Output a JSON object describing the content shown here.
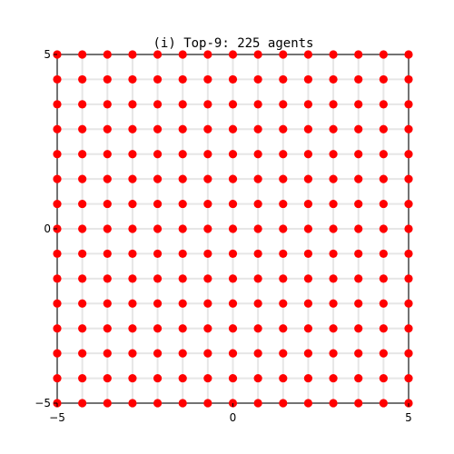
{
  "chart_data": {
    "type": "scatter",
    "title": "(i) Top-9: 225 agents",
    "xlabel": "",
    "ylabel": "",
    "xlim": [
      -5,
      5
    ],
    "ylim": [
      -5,
      5
    ],
    "xticks": [
      -5,
      0,
      5
    ],
    "yticks": [
      -5,
      0,
      5
    ],
    "xtick_labels": [
      "−5",
      "0",
      "5"
    ],
    "ytick_labels": [
      "−5",
      "0",
      "5"
    ],
    "grid": true,
    "edge_weights": "nearest neighbors (4-connected lattice)",
    "grid_resolution": 15,
    "series": [
      {
        "marker": "circle",
        "color": "#ff0000",
        "x_values": [
          -5,
          -4.2857,
          -3.5714,
          -2.8571,
          -2.1429,
          -1.4286,
          -0.7143,
          0,
          0.7143,
          1.4286,
          2.1429,
          2.8571,
          3.5714,
          4.2857,
          5
        ],
        "y_values": [
          -5,
          -4.2857,
          -3.5714,
          -2.8571,
          -2.1429,
          -1.4286,
          -0.7143,
          0,
          0.7143,
          1.4286,
          2.1429,
          2.8571,
          3.5714,
          4.2857,
          5
        ]
      }
    ],
    "colors": {
      "point": "#ff0000",
      "link": "#e6e6e6",
      "axes": "#000000"
    }
  }
}
